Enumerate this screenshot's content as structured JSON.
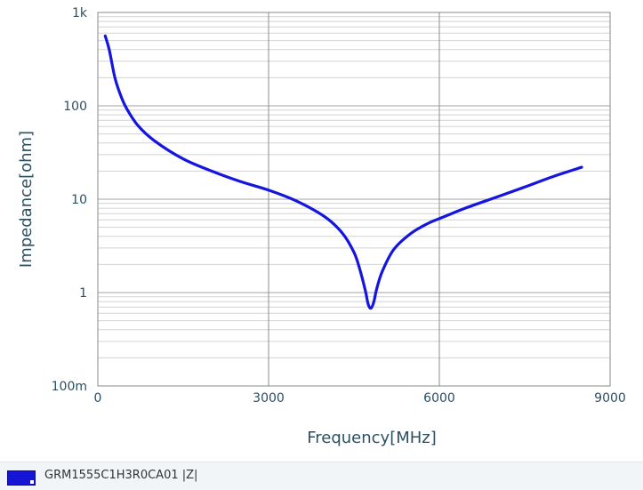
{
  "chart_data": {
    "type": "line",
    "xlabel": "Frequency[MHz]",
    "ylabel": "Impedance[ohm]",
    "x_scale": "linear",
    "y_scale": "log",
    "xlim": [
      0,
      9000
    ],
    "ylim": [
      0.1,
      1000
    ],
    "x_ticks": [
      {
        "value": 0,
        "label": "0"
      },
      {
        "value": 3000,
        "label": "3000"
      },
      {
        "value": 6000,
        "label": "6000"
      },
      {
        "value": 9000,
        "label": "9000"
      }
    ],
    "y_ticks": [
      {
        "value": 0.1,
        "label": "100m"
      },
      {
        "value": 1,
        "label": "1"
      },
      {
        "value": 10,
        "label": "10"
      },
      {
        "value": 100,
        "label": "100"
      },
      {
        "value": 1000,
        "label": "1k"
      }
    ],
    "grid": true,
    "legend_position": "bottom-left",
    "series": [
      {
        "name": "GRM1555C1H3R0CA01 |Z|",
        "color": "#1515e0",
        "x": [
          130,
          200,
          300,
          400,
          500,
          700,
          1000,
          1500,
          2000,
          2500,
          3000,
          3500,
          4000,
          4300,
          4500,
          4600,
          4700,
          4750,
          4800,
          4850,
          4900,
          5000,
          5200,
          5500,
          5800,
          6000,
          6500,
          7000,
          7500,
          8000,
          8500
        ],
        "y": [
          560,
          400,
          200,
          130,
          95,
          62,
          42,
          27,
          20,
          15.5,
          12.5,
          9.5,
          6.4,
          4.3,
          2.7,
          1.8,
          1.05,
          0.75,
          0.68,
          0.8,
          1.1,
          1.7,
          2.9,
          4.3,
          5.5,
          6.2,
          8.2,
          10.5,
          13.5,
          17.5,
          22
        ]
      }
    ]
  },
  "legend": {
    "label": "GRM1555C1H3R0CA01  |Z|",
    "swatch_color": "#1515d8"
  }
}
